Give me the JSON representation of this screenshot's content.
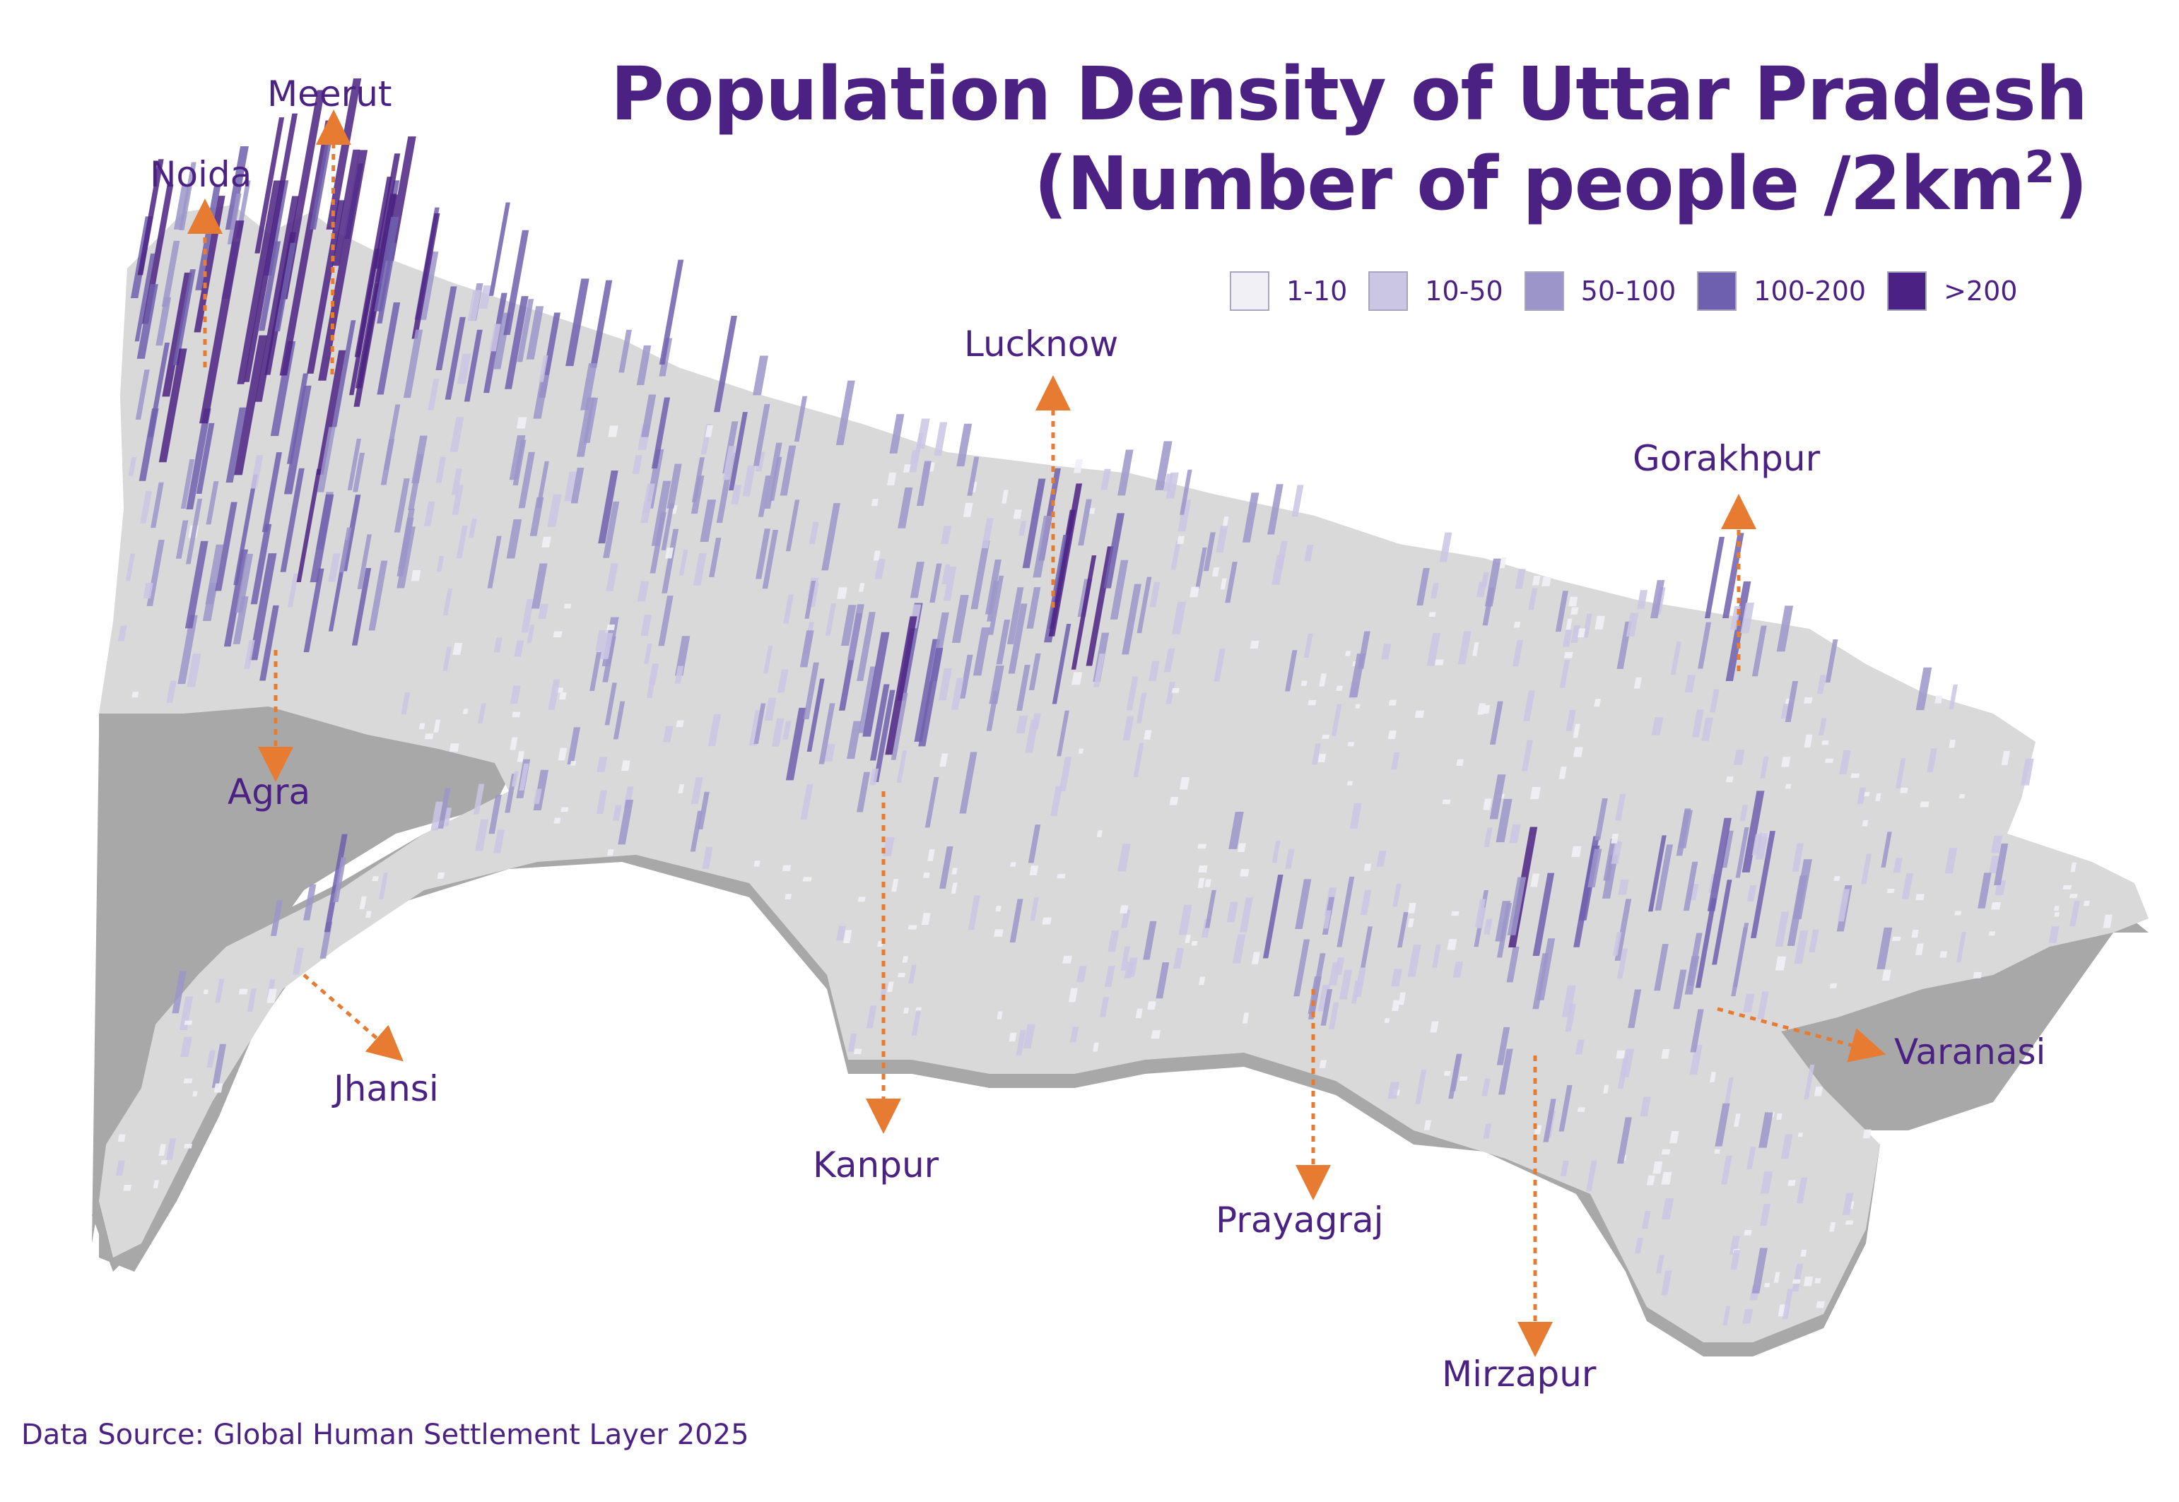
{
  "title": {
    "line1": "Population Density of Uttar Pradesh",
    "line2_main": "(Number of people /2km",
    "line2_sup": "2",
    "line2_end": ")"
  },
  "legend": [
    {
      "label": "1-10",
      "color": "#f1f0f5"
    },
    {
      "label": "10-50",
      "color": "#cbc6e4"
    },
    {
      "label": "50-100",
      "color": "#9c95c9"
    },
    {
      "label": "100-200",
      "color": "#6e60ae"
    },
    {
      "label": ">200",
      "color": "#4b2283"
    }
  ],
  "cities": {
    "noida": "Noida",
    "meerut": "Meerut",
    "agra": "Agra",
    "lucknow": "Lucknow",
    "gorakhpur": "Gorakhpur",
    "jhansi": "Jhansi",
    "kanpur": "Kanpur",
    "prayagraj": "Prayagraj",
    "varanasi": "Varanasi",
    "mirzapur": "Mirzapur"
  },
  "source": "Data Source: Global Human Settlement Layer 2025",
  "colors": {
    "accent": "#4b2283",
    "arrow": "#e87b32",
    "land": "#d9d9d9",
    "land_edge": "#a8a8a8"
  }
}
